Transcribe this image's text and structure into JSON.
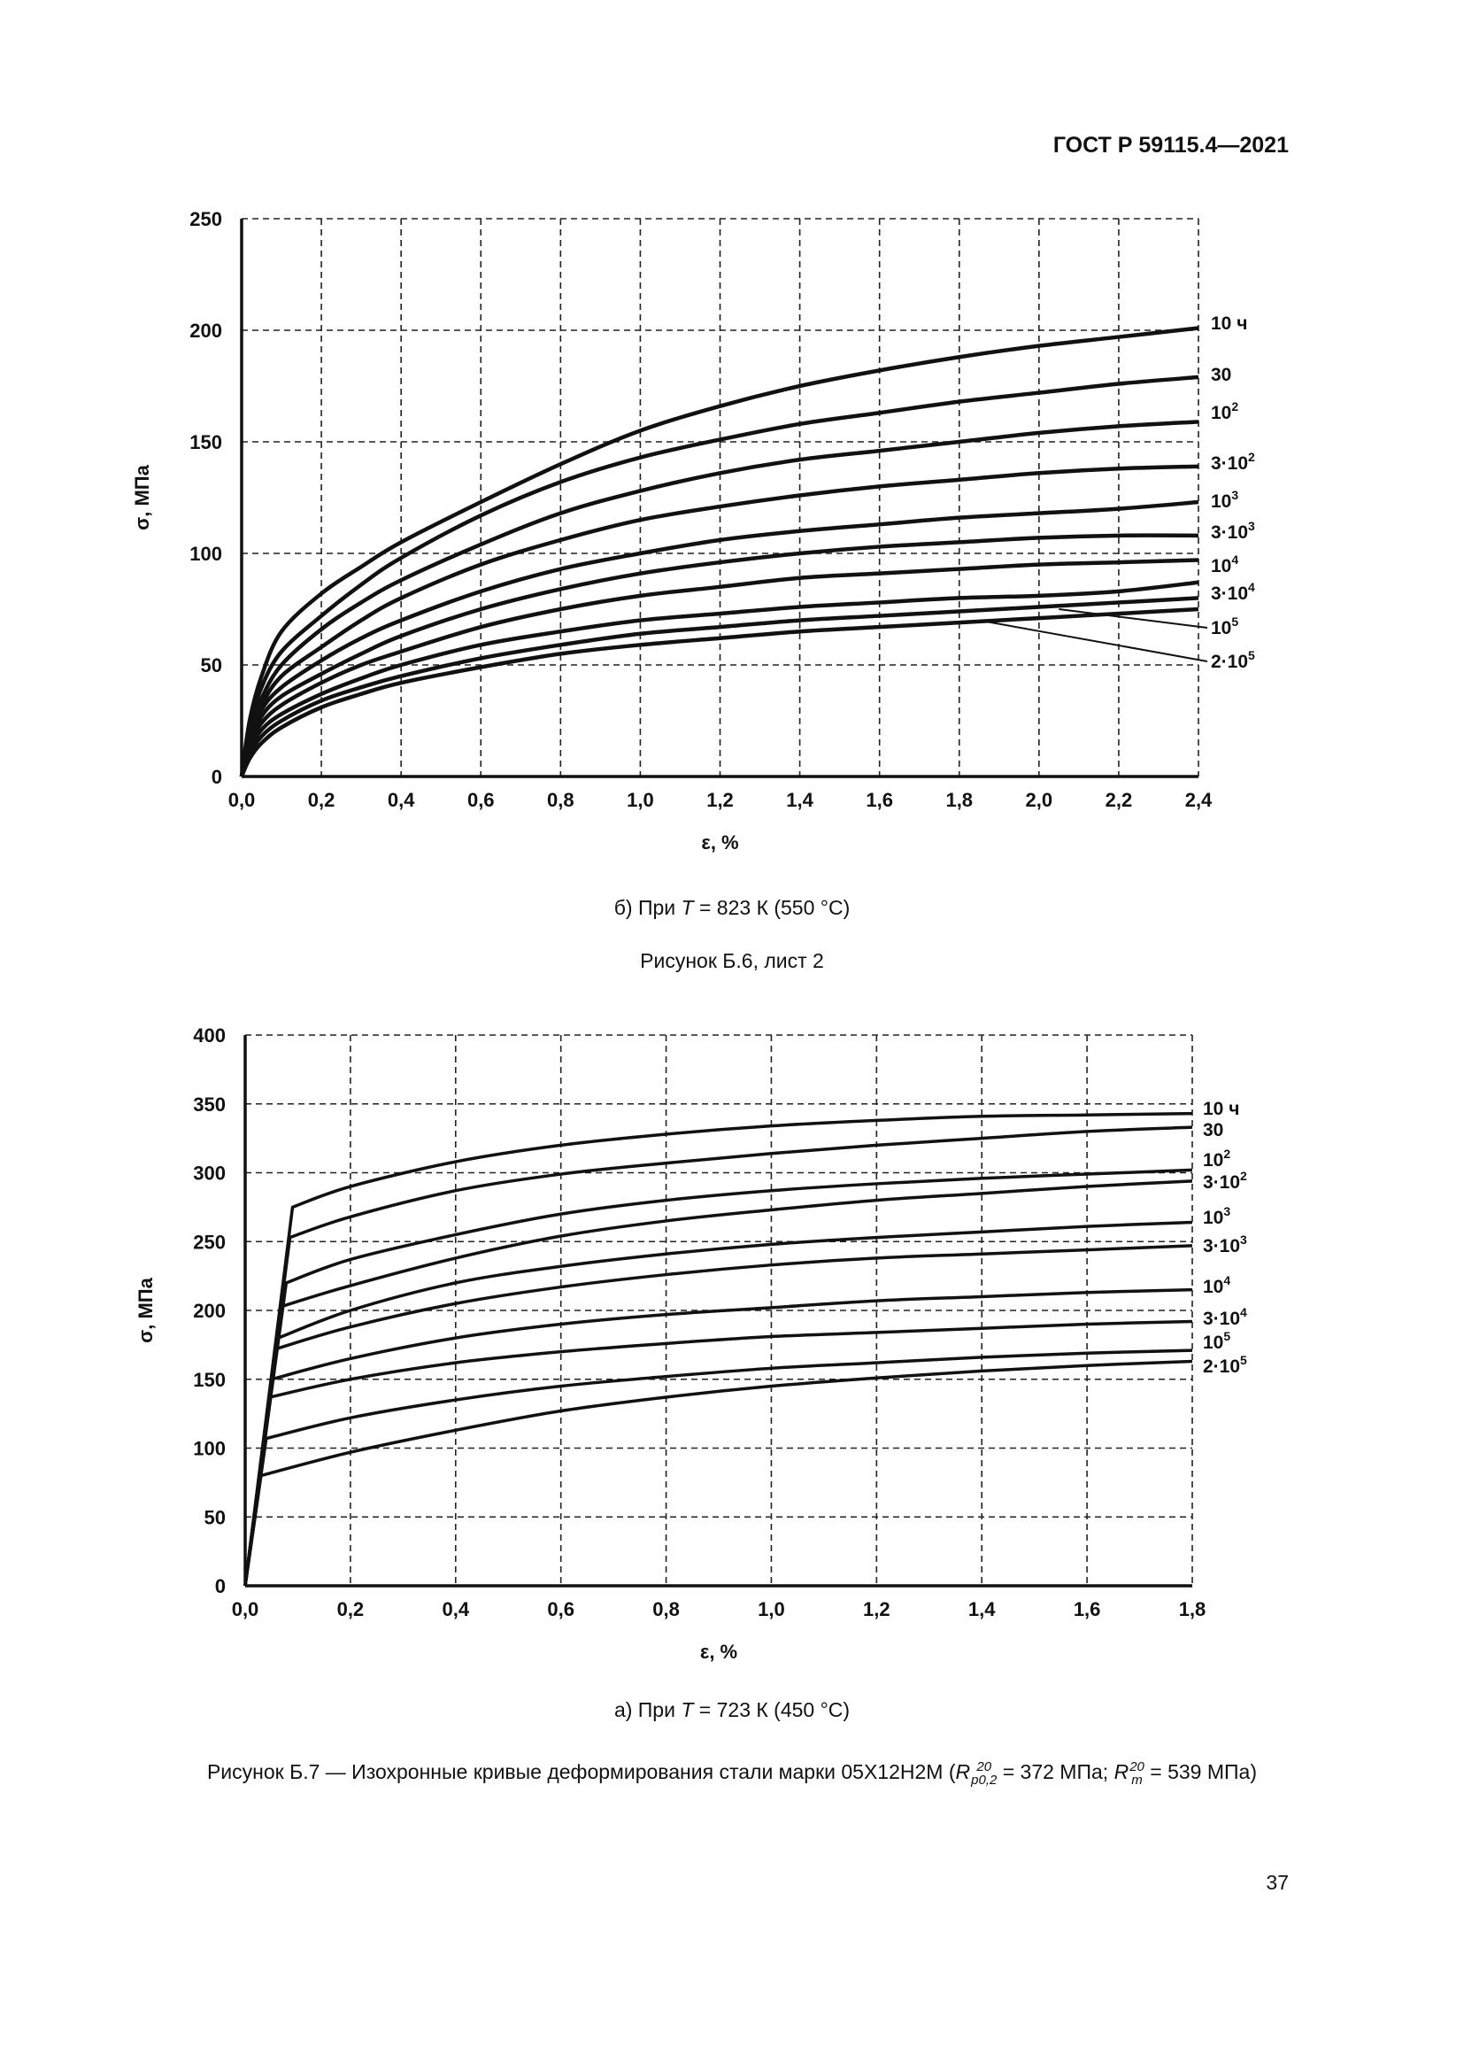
{
  "header": {
    "doc_id": "ГОСТ Р 59115.4—2021"
  },
  "captions": {
    "top_sub_prefix": "б) При ",
    "top_sub_var": "T",
    "top_sub_rest": " = 823 К (550 °С)",
    "sheet_label": "Рисунок Б.6, лист 2",
    "bottom_sub_prefix": "а) При ",
    "bottom_sub_var": "T",
    "bottom_sub_rest": " = 723 К (450 °С)",
    "figure_prefix": "Рисунок Б.7 — Изохронные кривые деформирования стали марки 05Х12Н2М (",
    "figure_r1": "R",
    "figure_r1_sup": "20",
    "figure_r1_sub": "p0,2",
    "figure_mid": " = 372 МПа; ",
    "figure_r2": "R",
    "figure_r2_sup": "20",
    "figure_r2_sub": "m",
    "figure_end": " = 539 МПа)"
  },
  "page_number": "37",
  "chart_data": [
    {
      "type": "line",
      "title": "б) При T = 823 К (550 °С)",
      "xlabel": "ε, %",
      "ylabel": "σ, МПа",
      "xlim": [
        0,
        2.4
      ],
      "ylim": [
        0,
        250
      ],
      "xticks": [
        0,
        0.2,
        0.4,
        0.6,
        0.8,
        1.0,
        1.2,
        1.4,
        1.6,
        1.8,
        2.0,
        2.2,
        2.4
      ],
      "xtick_labels": [
        "0,0",
        "0,2",
        "0,4",
        "0,6",
        "0,8",
        "1,0",
        "1,2",
        "1,4",
        "1,6",
        "1,8",
        "2,0",
        "2,2",
        "2,4"
      ],
      "yticks": [
        0,
        50,
        100,
        150,
        200,
        250
      ],
      "ytick_labels": [
        "0",
        "50",
        "100",
        "150",
        "200",
        "250"
      ],
      "grid": true,
      "series": [
        {
          "name": "10 ч",
          "label_base": "10 ч",
          "label_exp": "",
          "x": [
            0,
            0.02,
            0.05,
            0.1,
            0.2,
            0.3,
            0.4,
            0.6,
            0.8,
            1.0,
            1.2,
            1.4,
            1.6,
            1.8,
            2.0,
            2.2,
            2.4
          ],
          "values": [
            0,
            25,
            45,
            65,
            82,
            94,
            105,
            123,
            140,
            155,
            166,
            175,
            182,
            188,
            193,
            197,
            201
          ]
        },
        {
          "name": "30",
          "label_base": "30",
          "label_exp": "",
          "x": [
            0,
            0.02,
            0.05,
            0.1,
            0.2,
            0.3,
            0.4,
            0.6,
            0.8,
            1.0,
            1.2,
            1.4,
            1.6,
            1.8,
            2.0,
            2.2,
            2.4
          ],
          "values": [
            0,
            22,
            40,
            56,
            72,
            86,
            98,
            117,
            132,
            143,
            151,
            158,
            163,
            168,
            172,
            176,
            179
          ]
        },
        {
          "name": "10^2",
          "label_base": "10",
          "label_exp": "2",
          "x": [
            0,
            0.02,
            0.05,
            0.1,
            0.2,
            0.3,
            0.4,
            0.6,
            0.8,
            1.0,
            1.2,
            1.4,
            1.6,
            1.8,
            2.0,
            2.2,
            2.4
          ],
          "values": [
            0,
            20,
            35,
            50,
            66,
            78,
            88,
            104,
            118,
            128,
            136,
            142,
            146,
            150,
            154,
            157,
            159
          ]
        },
        {
          "name": "3·10^2",
          "label_base": "3·10",
          "label_exp": "2",
          "x": [
            0,
            0.02,
            0.05,
            0.1,
            0.2,
            0.3,
            0.4,
            0.6,
            0.8,
            1.0,
            1.2,
            1.4,
            1.6,
            1.8,
            2.0,
            2.2,
            2.4
          ],
          "values": [
            0,
            18,
            32,
            45,
            58,
            70,
            80,
            95,
            106,
            115,
            121,
            126,
            130,
            133,
            136,
            138,
            139
          ]
        },
        {
          "name": "10^3",
          "label_base": "10",
          "label_exp": "3",
          "x": [
            0,
            0.02,
            0.05,
            0.1,
            0.2,
            0.3,
            0.4,
            0.6,
            0.8,
            1.0,
            1.2,
            1.4,
            1.6,
            1.8,
            2.0,
            2.2,
            2.4
          ],
          "values": [
            0,
            17,
            30,
            40,
            52,
            62,
            70,
            83,
            93,
            100,
            106,
            110,
            113,
            116,
            118,
            120,
            123
          ]
        },
        {
          "name": "3·10^3",
          "label_base": "3·10",
          "label_exp": "3",
          "x": [
            0,
            0.02,
            0.05,
            0.1,
            0.2,
            0.3,
            0.4,
            0.6,
            0.8,
            1.0,
            1.2,
            1.4,
            1.6,
            1.8,
            2.0,
            2.2,
            2.4
          ],
          "values": [
            0,
            15,
            27,
            36,
            46,
            55,
            63,
            75,
            84,
            91,
            96,
            100,
            103,
            105,
            107,
            108,
            108
          ]
        },
        {
          "name": "10^4",
          "label_base": "10",
          "label_exp": "4",
          "x": [
            0,
            0.02,
            0.05,
            0.1,
            0.2,
            0.3,
            0.4,
            0.6,
            0.8,
            1.0,
            1.2,
            1.4,
            1.6,
            1.8,
            2.0,
            2.2,
            2.4
          ],
          "values": [
            0,
            14,
            24,
            32,
            42,
            50,
            56,
            67,
            75,
            81,
            85,
            89,
            91,
            93,
            95,
            96,
            97
          ]
        },
        {
          "name": "3·10^4",
          "label_base": "3·10",
          "label_exp": "4",
          "x": [
            0,
            0.02,
            0.05,
            0.1,
            0.2,
            0.3,
            0.4,
            0.6,
            0.8,
            1.0,
            1.2,
            1.4,
            1.6,
            1.8,
            2.0,
            2.2,
            2.4
          ],
          "values": [
            0,
            12,
            21,
            28,
            37,
            44,
            50,
            59,
            65,
            70,
            73,
            76,
            78,
            80,
            81,
            83,
            87
          ]
        },
        {
          "name": "10^5",
          "label_base": "10",
          "label_exp": "5",
          "x": [
            0,
            0.02,
            0.05,
            0.1,
            0.2,
            0.3,
            0.4,
            0.6,
            0.8,
            1.0,
            1.2,
            1.4,
            1.6,
            1.8,
            2.0,
            2.2,
            2.4
          ],
          "values": [
            0,
            10,
            18,
            25,
            34,
            40,
            45,
            53,
            59,
            64,
            67,
            70,
            72,
            74,
            76,
            78,
            80
          ]
        },
        {
          "name": "2·10^5",
          "label_base": "2·10",
          "label_exp": "5",
          "x": [
            0,
            0.02,
            0.05,
            0.1,
            0.2,
            0.3,
            0.4,
            0.6,
            0.8,
            1.0,
            1.2,
            1.4,
            1.6,
            1.8,
            2.0,
            2.2,
            2.4
          ],
          "values": [
            0,
            8,
            15,
            22,
            31,
            37,
            42,
            49,
            55,
            59,
            62,
            65,
            67,
            69,
            71,
            73,
            75
          ]
        }
      ]
    },
    {
      "type": "line",
      "title": "а) При T = 723 К (450 °С)",
      "xlabel": "ε, %",
      "ylabel": "σ, МПа",
      "xlim": [
        0,
        1.8
      ],
      "ylim": [
        0,
        400
      ],
      "xticks": [
        0,
        0.2,
        0.4,
        0.6,
        0.8,
        1.0,
        1.2,
        1.4,
        1.6,
        1.8
      ],
      "xtick_labels": [
        "0,0",
        "0,2",
        "0,4",
        "0,6",
        "0,8",
        "1,0",
        "1,2",
        "1,4",
        "1,6",
        "1,8"
      ],
      "yticks": [
        0,
        50,
        100,
        150,
        200,
        250,
        300,
        350,
        400
      ],
      "ytick_labels": [
        "0",
        "50",
        "100",
        "150",
        "200",
        "250",
        "300",
        "350",
        "400"
      ],
      "grid": true,
      "series": [
        {
          "name": "10 ч",
          "label_base": "10 ч",
          "label_exp": "",
          "x": [
            0,
            0.09,
            0.2,
            0.4,
            0.6,
            0.8,
            1.0,
            1.2,
            1.4,
            1.6,
            1.8
          ],
          "values": [
            0,
            275,
            290,
            308,
            320,
            328,
            334,
            338,
            341,
            342,
            343
          ]
        },
        {
          "name": "30",
          "label_base": "30",
          "label_exp": "",
          "x": [
            0,
            0.085,
            0.2,
            0.4,
            0.6,
            0.8,
            1.0,
            1.2,
            1.4,
            1.6,
            1.8
          ],
          "values": [
            0,
            253,
            268,
            287,
            299,
            307,
            314,
            320,
            325,
            330,
            333
          ]
        },
        {
          "name": "10^2",
          "label_base": "10",
          "label_exp": "2",
          "x": [
            0,
            0.078,
            0.2,
            0.4,
            0.6,
            0.8,
            1.0,
            1.2,
            1.4,
            1.6,
            1.8
          ],
          "values": [
            0,
            220,
            237,
            255,
            270,
            280,
            287,
            292,
            296,
            299,
            302
          ]
        },
        {
          "name": "3·10^2",
          "label_base": "3·10",
          "label_exp": "2",
          "x": [
            0,
            0.07,
            0.2,
            0.4,
            0.6,
            0.8,
            1.0,
            1.2,
            1.4,
            1.6,
            1.8
          ],
          "values": [
            0,
            203,
            218,
            238,
            254,
            265,
            273,
            280,
            285,
            290,
            294
          ]
        },
        {
          "name": "10^3",
          "label_base": "10",
          "label_exp": "3",
          "x": [
            0,
            0.063,
            0.2,
            0.4,
            0.6,
            0.8,
            1.0,
            1.2,
            1.4,
            1.6,
            1.8
          ],
          "values": [
            0,
            180,
            200,
            220,
            232,
            241,
            248,
            253,
            257,
            261,
            264
          ]
        },
        {
          "name": "3·10^3",
          "label_base": "3·10",
          "label_exp": "3",
          "x": [
            0,
            0.058,
            0.2,
            0.4,
            0.6,
            0.8,
            1.0,
            1.2,
            1.4,
            1.6,
            1.8
          ],
          "values": [
            0,
            172,
            188,
            205,
            217,
            226,
            233,
            238,
            241,
            244,
            247
          ]
        },
        {
          "name": "10^4",
          "label_base": "10",
          "label_exp": "4",
          "x": [
            0,
            0.05,
            0.2,
            0.4,
            0.6,
            0.8,
            1.0,
            1.2,
            1.4,
            1.6,
            1.8
          ],
          "values": [
            0,
            150,
            165,
            180,
            190,
            197,
            202,
            207,
            210,
            213,
            215
          ]
        },
        {
          "name": "3·10^4",
          "label_base": "3·10",
          "label_exp": "4",
          "x": [
            0,
            0.047,
            0.2,
            0.4,
            0.6,
            0.8,
            1.0,
            1.2,
            1.4,
            1.6,
            1.8
          ],
          "values": [
            0,
            137,
            150,
            162,
            170,
            176,
            181,
            184,
            187,
            190,
            192
          ]
        },
        {
          "name": "10^5",
          "label_base": "10",
          "label_exp": "5",
          "x": [
            0,
            0.04,
            0.2,
            0.4,
            0.6,
            0.8,
            1.0,
            1.2,
            1.4,
            1.6,
            1.8
          ],
          "values": [
            0,
            107,
            122,
            135,
            145,
            152,
            158,
            162,
            166,
            169,
            171
          ]
        },
        {
          "name": "2·10^5",
          "label_base": "2·10",
          "label_exp": "5",
          "x": [
            0,
            0.03,
            0.2,
            0.4,
            0.6,
            0.8,
            1.0,
            1.2,
            1.4,
            1.6,
            1.8
          ],
          "values": [
            0,
            80,
            97,
            113,
            127,
            137,
            145,
            151,
            156,
            160,
            163
          ]
        }
      ]
    }
  ]
}
